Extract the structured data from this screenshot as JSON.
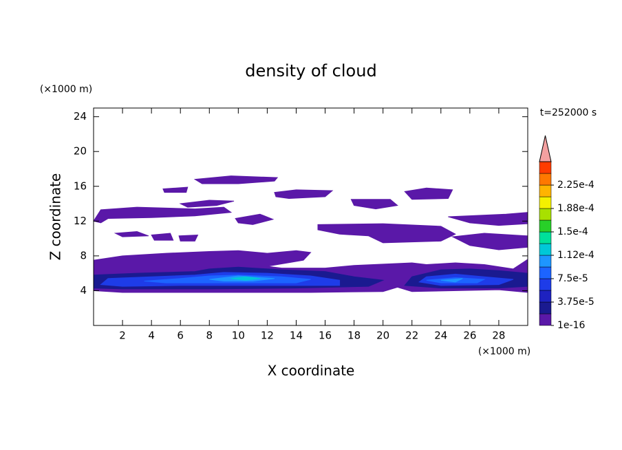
{
  "chart_data": {
    "type": "contour",
    "title": "density of cloud",
    "xlabel": "X coordinate",
    "ylabel": "Z coordinate",
    "xunit": "(×1000 m)",
    "yunit": "(×1000 m)",
    "annotation": "t=252000 s",
    "xlim": [
      0,
      30
    ],
    "ylim": [
      0,
      25
    ],
    "xticks": [
      2,
      4,
      6,
      8,
      10,
      12,
      14,
      16,
      18,
      20,
      22,
      24,
      26,
      28
    ],
    "yticks": [
      4,
      8,
      12,
      16,
      20,
      24
    ],
    "colorbar": {
      "colors": [
        "#5a18a8",
        "#1a1a90",
        "#1e22c0",
        "#1e3ce8",
        "#1c64ff",
        "#1e96ff",
        "#00c8d8",
        "#00e09a",
        "#28d028",
        "#a8e000",
        "#f4f000",
        "#ffb400",
        "#ff7800",
        "#ff3c00"
      ],
      "extend_color": "#f4a0a0",
      "ticks": [
        1e-16,
        {
          "value": 3.75e-05,
          "label": "3.75e-5"
        },
        {
          "value": 7.5e-05,
          "label": "7.5e-5"
        },
        {
          "value": 0.000112,
          "label": "1.12e-4"
        },
        {
          "value": 0.00015,
          "label": "1.5e-4"
        },
        {
          "value": 0.000188,
          "label": "1.88e-4"
        },
        {
          "value": 0.000225,
          "label": "2.25e-4"
        }
      ]
    },
    "regions": [
      {
        "color": "#5a18a8",
        "x": [
          0,
          0,
          2,
          5,
          8,
          10,
          12,
          14,
          15,
          14.5,
          12,
          13,
          16,
          18,
          22,
          23,
          25,
          27,
          29,
          30,
          30,
          28,
          22,
          21,
          20,
          15,
          8,
          2,
          0
        ],
        "y": [
          4.5,
          7.5,
          8,
          8.3,
          8.5,
          8.6,
          8.3,
          8.6,
          8.4,
          7.5,
          6.8,
          6.6,
          6.6,
          6.9,
          7.2,
          7.0,
          7.2,
          7.0,
          6.5,
          7.6,
          3.8,
          4.1,
          3.9,
          4.4,
          3.9,
          3.8,
          3.8,
          3.8,
          4.0
        ]
      },
      {
        "color": "#5a18a8",
        "x": [
          0,
          0.5,
          3,
          7,
          9,
          9.5,
          7,
          4,
          1,
          0.5
        ],
        "y": [
          12,
          13.3,
          13.6,
          13.4,
          13.6,
          13,
          12.6,
          12.4,
          12.3,
          11.8
        ]
      },
      {
        "color": "#5a18a8",
        "x": [
          4.8,
          6.5,
          6.4,
          4.9
        ],
        "y": [
          15.7,
          15.9,
          15.3,
          15.3
        ]
      },
      {
        "color": "#5a18a8",
        "x": [
          7,
          9.5,
          12.7,
          12.5,
          10,
          7.5
        ],
        "y": [
          16.8,
          17.2,
          17,
          16.6,
          16.3,
          16.3
        ]
      },
      {
        "color": "#5a18a8",
        "x": [
          6,
          8,
          9.7,
          8.5,
          6.5
        ],
        "y": [
          14,
          14.4,
          14.3,
          13.8,
          13.6
        ]
      },
      {
        "color": "#5a18a8",
        "x": [
          12.5,
          14,
          16.5,
          16,
          13.5,
          12.6
        ],
        "y": [
          15.3,
          15.6,
          15.5,
          14.8,
          14.6,
          14.8
        ]
      },
      {
        "color": "#5a18a8",
        "x": [
          17.8,
          20.5,
          21,
          19.5,
          18
        ],
        "y": [
          14.5,
          14.5,
          13.8,
          13.4,
          13.8
        ]
      },
      {
        "color": "#5a18a8",
        "x": [
          21.5,
          23,
          24.8,
          24.5,
          22
        ],
        "y": [
          15.4,
          15.8,
          15.6,
          14.6,
          14.5
        ]
      },
      {
        "color": "#5a18a8",
        "x": [
          9.8,
          11.5,
          12.4,
          11,
          10
        ],
        "y": [
          12.3,
          12.8,
          12.2,
          11.6,
          11.8
        ]
      },
      {
        "color": "#5a18a8",
        "x": [
          15.5,
          20,
          24,
          25,
          24,
          20,
          19,
          17,
          15.5
        ],
        "y": [
          11.6,
          11.7,
          11.4,
          10.5,
          9.7,
          9.5,
          10.3,
          10.5,
          11
        ]
      },
      {
        "color": "#5a18a8",
        "x": [
          24.5,
          28.5,
          30,
          30,
          28,
          26
        ],
        "y": [
          12.5,
          12.8,
          13,
          11.7,
          11.5,
          11.8
        ]
      },
      {
        "color": "#5a18a8",
        "x": [
          24.8,
          27,
          30,
          30,
          28,
          26
        ],
        "y": [
          10.2,
          10.6,
          10.3,
          9,
          8.7,
          9.2
        ]
      },
      {
        "color": "#5a18a8",
        "x": [
          1.5,
          3,
          3.8,
          2
        ],
        "y": [
          10.6,
          10.8,
          10.3,
          10.2
        ]
      },
      {
        "color": "#5a18a8",
        "x": [
          4,
          5.3,
          5.5,
          4.2
        ],
        "y": [
          10.4,
          10.6,
          9.8,
          9.8
        ]
      },
      {
        "color": "#5a18a8",
        "x": [
          5.9,
          7.2,
          7,
          6
        ],
        "y": [
          10.3,
          10.4,
          9.7,
          9.7
        ]
      },
      {
        "color": "#1a1a90",
        "x": [
          0,
          0,
          3,
          7,
          8,
          10,
          13,
          16,
          18,
          20,
          19,
          14,
          8,
          2
        ],
        "y": [
          4.3,
          5.8,
          6,
          6.2,
          6.5,
          6.7,
          6.4,
          6.2,
          5.6,
          5.2,
          4.5,
          4.3,
          4.2,
          4.2
        ]
      },
      {
        "color": "#1a1a90",
        "x": [
          21.5,
          22,
          24,
          26,
          28,
          30,
          30,
          28,
          24
        ],
        "y": [
          4.6,
          5.6,
          6.4,
          6.5,
          6.3,
          6,
          4.5,
          4.3,
          4.3
        ]
      },
      {
        "color": "#1e3ce8",
        "x": [
          0.5,
          1,
          4,
          7,
          9,
          12,
          15,
          17,
          17,
          12,
          6,
          2
        ],
        "y": [
          4.7,
          5.4,
          5.6,
          5.8,
          6.1,
          6,
          5.7,
          5.2,
          4.6,
          4.6,
          4.6,
          4.5
        ]
      },
      {
        "color": "#1e3ce8",
        "x": [
          22.5,
          23,
          25,
          27,
          29,
          28,
          24
        ],
        "y": [
          5,
          5.6,
          5.9,
          5.6,
          5.3,
          4.7,
          4.6
        ]
      },
      {
        "color": "#1c64ff",
        "x": [
          3.5,
          6,
          8,
          10,
          13,
          15,
          14,
          9,
          5
        ],
        "y": [
          5.1,
          5.4,
          5.7,
          5.8,
          5.6,
          5.3,
          4.9,
          4.9,
          4.9
        ]
      },
      {
        "color": "#1c64ff",
        "x": [
          23,
          25,
          27,
          26.5,
          24
        ],
        "y": [
          5.2,
          5.5,
          5.3,
          4.9,
          4.9
        ]
      },
      {
        "color": "#1e96ff",
        "x": [
          8,
          10,
          12.5,
          11,
          9
        ],
        "y": [
          5.3,
          5.7,
          5.4,
          5.1,
          5.1
        ]
      },
      {
        "color": "#1e96ff",
        "x": [
          24,
          25.5,
          25
        ],
        "y": [
          5.2,
          5.4,
          5.0
        ]
      },
      {
        "color": "#00c8d8",
        "x": [
          9.5,
          10.5,
          11.5,
          10.5
        ],
        "y": [
          5.4,
          5.6,
          5.4,
          5.2
        ]
      }
    ]
  }
}
